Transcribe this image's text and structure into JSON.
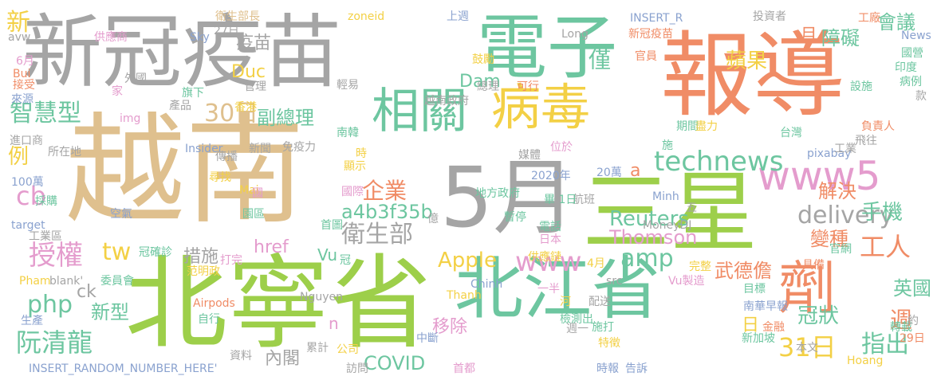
{
  "palette": {
    "tan": "#dfc08e",
    "green": "#9dcf4a",
    "teal": "#6dc6a0",
    "orange": "#f08c66",
    "gray": "#a5a5a5",
    "pink": "#e49ccd",
    "yellow": "#f3d045",
    "blue": "#8aa2cf"
  },
  "words": [
    {
      "text": "越南",
      "color": "tan"
    },
    {
      "text": "北寧省",
      "color": "green"
    },
    {
      "text": "報導",
      "color": "orange"
    },
    {
      "text": "新冠疫苗",
      "color": "gray"
    },
    {
      "text": "電子",
      "color": "teal"
    },
    {
      "text": "5月",
      "color": "gray"
    },
    {
      "text": "三星",
      "color": "green"
    },
    {
      "text": "北江省",
      "color": "teal"
    },
    {
      "text": "劑",
      "color": "orange"
    },
    {
      "text": "病毒",
      "color": "yellow"
    },
    {
      "text": "相關",
      "color": "teal"
    },
    {
      "text": "www5",
      "color": "pink"
    },
    {
      "text": "technews",
      "color": "teal"
    },
    {
      "text": "delivery",
      "color": "gray"
    },
    {
      "text": "工人",
      "color": "orange"
    },
    {
      "text": "amp",
      "color": "teal"
    },
    {
      "text": "www",
      "color": "pink"
    },
    {
      "text": "Apple",
      "color": "yellow"
    },
    {
      "text": "衛生部",
      "color": "gray"
    },
    {
      "text": "企業",
      "color": "orange"
    },
    {
      "text": "a4b3f35b",
      "color": "teal"
    },
    {
      "text": "30日",
      "color": "tan"
    },
    {
      "text": "智慧型",
      "color": "teal"
    },
    {
      "text": "副總理",
      "color": "teal"
    },
    {
      "text": "授權",
      "color": "pink"
    },
    {
      "text": "tw",
      "color": "yellow"
    },
    {
      "text": "php",
      "color": "teal"
    },
    {
      "text": "cb",
      "color": "pink"
    },
    {
      "text": "阮清龍",
      "color": "teal"
    },
    {
      "text": "新型",
      "color": "teal"
    },
    {
      "text": "ck",
      "color": "gray"
    },
    {
      "text": "例",
      "color": "yellow"
    },
    {
      "text": "蘋果",
      "color": "yellow"
    },
    {
      "text": "會議",
      "color": "teal"
    },
    {
      "text": "障礙",
      "color": "teal"
    },
    {
      "text": "僅",
      "color": "teal"
    },
    {
      "text": "月",
      "color": "orange"
    },
    {
      "text": "Reuters",
      "color": "teal"
    },
    {
      "text": "手機",
      "color": "teal"
    },
    {
      "text": "解決",
      "color": "orange"
    },
    {
      "text": "變種",
      "color": "orange"
    },
    {
      "text": "Thomson",
      "color": "pink"
    },
    {
      "text": "武德儋",
      "color": "orange"
    },
    {
      "text": "英國",
      "color": "teal"
    },
    {
      "text": "週",
      "color": "orange"
    },
    {
      "text": "31日",
      "color": "yellow"
    },
    {
      "text": "指出",
      "color": "teal"
    },
    {
      "text": "冠狀",
      "color": "teal"
    },
    {
      "text": "移除",
      "color": "pink"
    },
    {
      "text": "COVID",
      "color": "teal"
    },
    {
      "text": "內閣",
      "color": "gray"
    },
    {
      "text": "措施",
      "color": "gray"
    },
    {
      "text": "href",
      "color": "pink"
    },
    {
      "text": "Vu",
      "color": "teal"
    },
    {
      "text": "n",
      "color": "pink"
    },
    {
      "text": "疫苗",
      "color": "gray"
    },
    {
      "text": "Duc",
      "color": "yellow"
    },
    {
      "text": "Dam",
      "color": "teal"
    },
    {
      "text": "a",
      "color": "orange"
    },
    {
      "text": "新",
      "color": "yellow"
    },
    {
      "text": "日",
      "color": "yellow"
    },
    {
      "text": "衛生部長",
      "color": "tan"
    },
    {
      "text": "zoneid",
      "color": "yellow"
    },
    {
      "text": "INSERT_R",
      "color": "blue"
    },
    {
      "text": "新冠疫苗",
      "color": "orange"
    },
    {
      "text": "上週",
      "color": "blue"
    },
    {
      "text": "投資者",
      "color": "gray"
    },
    {
      "text": "工廠",
      "color": "orange"
    },
    {
      "text": "News",
      "color": "blue"
    },
    {
      "text": "國營",
      "color": "teal"
    },
    {
      "text": "印度",
      "color": "teal"
    },
    {
      "text": "病例",
      "color": "teal"
    },
    {
      "text": "設施",
      "color": "teal"
    },
    {
      "text": "款",
      "color": "gray"
    },
    {
      "text": "負責人",
      "color": "orange"
    },
    {
      "text": "飛往",
      "color": "gray"
    },
    {
      "text": "pixabay",
      "color": "blue"
    },
    {
      "text": "工業",
      "color": "gray"
    },
    {
      "text": "台灣",
      "color": "teal"
    },
    {
      "text": "官網",
      "color": "teal"
    },
    {
      "text": "具備",
      "color": "orange"
    },
    {
      "text": "完整",
      "color": "yellow"
    },
    {
      "text": "目標",
      "color": "teal"
    },
    {
      "text": "南華早報",
      "color": "blue"
    },
    {
      "text": "轉載",
      "color": "teal"
    },
    {
      "text": "約",
      "color": "gray"
    },
    {
      "text": "29日",
      "color": "orange"
    },
    {
      "text": "本文",
      "color": "gray"
    },
    {
      "text": "Hoang",
      "color": "yellow"
    },
    {
      "text": "新加坡",
      "color": "teal"
    },
    {
      "text": "金融",
      "color": "orange"
    },
    {
      "text": "告訴",
      "color": "blue"
    },
    {
      "text": "時報",
      "color": "blue"
    },
    {
      "text": "特徵",
      "color": "yellow"
    },
    {
      "text": "首都",
      "color": "pink"
    },
    {
      "text": "訪問",
      "color": "gray"
    },
    {
      "text": "公司",
      "color": "yellow"
    },
    {
      "text": "累計",
      "color": "gray"
    },
    {
      "text": "資料",
      "color": "gray"
    },
    {
      "text": "INSERT_RANDOM_NUMBER_HERE'",
      "color": "blue"
    },
    {
      "text": "生產",
      "color": "blue"
    },
    {
      "text": "自行",
      "color": "teal"
    },
    {
      "text": "Airpods",
      "color": "orange"
    },
    {
      "text": "委員會",
      "color": "teal"
    },
    {
      "text": "blank'",
      "color": "gray"
    },
    {
      "text": "Pham",
      "color": "yellow"
    },
    {
      "text": "范明政",
      "color": "yellow"
    },
    {
      "text": "打完",
      "color": "pink"
    },
    {
      "text": "冠確診",
      "color": "teal"
    },
    {
      "text": "工業區",
      "color": "gray"
    },
    {
      "text": "target",
      "color": "blue"
    },
    {
      "text": "空氣",
      "color": "blue"
    },
    {
      "text": "採購",
      "color": "teal"
    },
    {
      "text": "100萬",
      "color": "blue"
    },
    {
      "text": "進口商",
      "color": "gray"
    },
    {
      "text": "所在地",
      "color": "gray"
    },
    {
      "text": "Insider",
      "color": "blue"
    },
    {
      "text": "新聞",
      "color": "gray"
    },
    {
      "text": "免疫力",
      "color": "gray"
    },
    {
      "text": "img",
      "color": "pink"
    },
    {
      "text": "產品",
      "color": "gray"
    },
    {
      "text": "旗下",
      "color": "teal"
    },
    {
      "text": "香港",
      "color": "yellow"
    },
    {
      "text": "接受",
      "color": "orange"
    },
    {
      "text": "來源",
      "color": "blue"
    },
    {
      "text": "Bui",
      "color": "orange"
    },
    {
      "text": "6月",
      "color": "pink"
    },
    {
      "text": "avw",
      "color": "gray"
    },
    {
      "text": "供應商",
      "color": "pink"
    },
    {
      "text": "外國",
      "color": "gray"
    },
    {
      "text": "家",
      "color": "pink"
    },
    {
      "text": "Sky",
      "color": "blue"
    },
    {
      "text": "27日",
      "color": "gray"
    },
    {
      "text": "管理",
      "color": "gray"
    },
    {
      "text": "輕易",
      "color": "gray"
    },
    {
      "text": "越南政府",
      "color": "gray"
    },
    {
      "text": "鼓勵",
      "color": "yellow"
    },
    {
      "text": "總理",
      "color": "gray"
    },
    {
      "text": "可行",
      "color": "orange"
    },
    {
      "text": "官員",
      "color": "orange"
    },
    {
      "text": "Long",
      "color": "gray"
    },
    {
      "text": "期間",
      "color": "teal"
    },
    {
      "text": "盡力",
      "color": "yellow"
    },
    {
      "text": "施",
      "color": "teal"
    },
    {
      "text": "位於",
      "color": "pink"
    },
    {
      "text": "南韓",
      "color": "teal"
    },
    {
      "text": "時",
      "color": "yellow"
    },
    {
      "text": "顯示",
      "color": "yellow"
    },
    {
      "text": "傳播",
      "color": "gray"
    },
    {
      "text": "尋找",
      "color": "yellow"
    },
    {
      "text": "Mai",
      "color": "yellow"
    },
    {
      "text": "國際",
      "color": "pink"
    },
    {
      "text": "媒體",
      "color": "gray"
    },
    {
      "text": "2020年",
      "color": "blue"
    },
    {
      "text": "20萬",
      "color": "blue"
    },
    {
      "text": "地方政府",
      "color": "teal"
    },
    {
      "text": "航班",
      "color": "gray"
    },
    {
      "text": "畢 1日",
      "color": "teal"
    },
    {
      "text": "Minh",
      "color": "blue"
    },
    {
      "text": "暫停",
      "color": "teal"
    },
    {
      "text": "五",
      "color": "gray"
    },
    {
      "text": "億",
      "color": "gray"
    },
    {
      "text": "電話",
      "color": "teal"
    },
    {
      "text": "日本",
      "color": "pink"
    },
    {
      "text": "MoneyDJ",
      "color": "gray"
    },
    {
      "text": "首圖",
      "color": "teal"
    },
    {
      "text": "國",
      "color": "pink"
    },
    {
      "text": "園區",
      "color": "teal"
    },
    {
      "text": "供應鏈",
      "color": "yellow"
    },
    {
      "text": "4月",
      "color": "yellow"
    },
    {
      "text": "冠",
      "color": "teal"
    },
    {
      "text": "Vu製造",
      "color": "pink"
    },
    {
      "text": "src",
      "color": "gray"
    },
    {
      "text": "Chinh",
      "color": "blue"
    },
    {
      "text": "一半",
      "color": "pink"
    },
    {
      "text": "Thanh",
      "color": "yellow"
    },
    {
      "text": "Nguyen",
      "color": "gray"
    },
    {
      "text": "河",
      "color": "yellow"
    },
    {
      "text": "配送",
      "color": "gray"
    },
    {
      "text": "檢測出",
      "color": "teal"
    },
    {
      "text": "週一",
      "color": "gray"
    },
    {
      "text": "施打",
      "color": "teal"
    },
    {
      "text": "中斷",
      "color": "blue"
    },
    {
      "text": "彭博社",
      "color": "teal"
    }
  ]
}
